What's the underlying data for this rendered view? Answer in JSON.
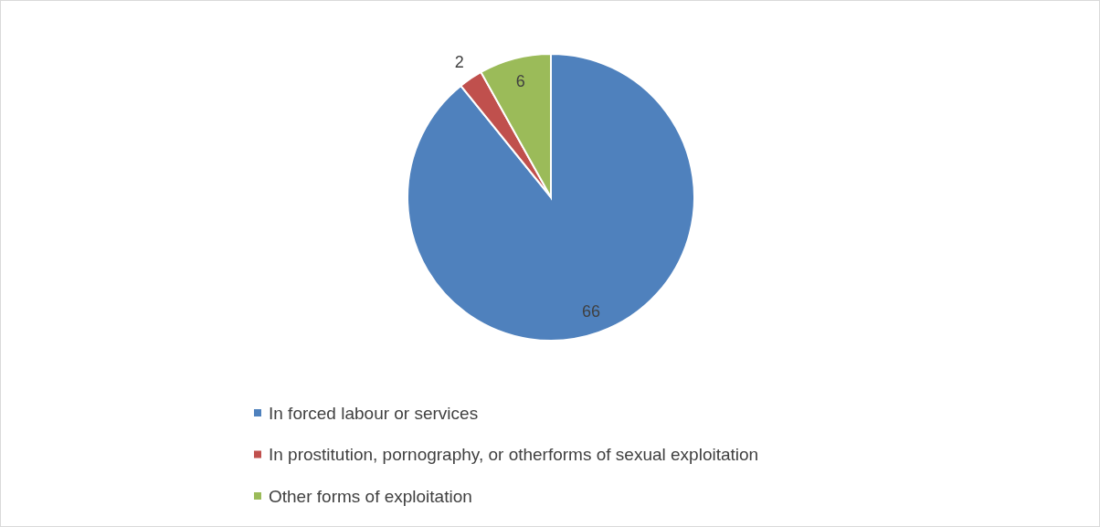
{
  "chart_data": {
    "type": "pie",
    "categories": [
      "In forced labour or services",
      "In prostitution, pornography, or otherforms of sexual exploitation",
      "Other forms of exploitation"
    ],
    "values": [
      66,
      2,
      6
    ],
    "colors": [
      "#4f81bd",
      "#c0504d",
      "#9bbb59"
    ],
    "data_labels": true,
    "legend": "bottom"
  }
}
